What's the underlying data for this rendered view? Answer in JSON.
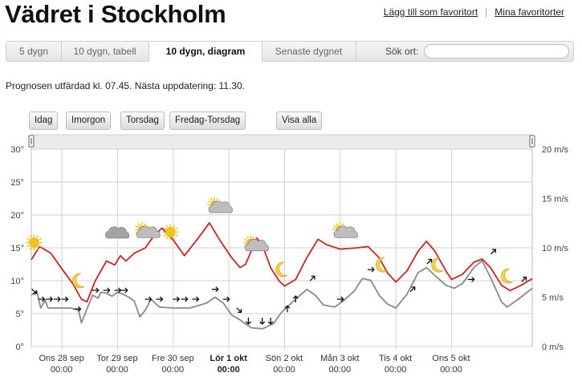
{
  "page": {
    "title": "Vädret i Stockholm",
    "links": {
      "add_favorite": "Lägg till som favoritort",
      "separator": "|",
      "my_favorites": "Mina favoritorter"
    }
  },
  "tabs": [
    {
      "label": "5 dygn",
      "active": false
    },
    {
      "label": "10 dygn, tabell",
      "active": false
    },
    {
      "label": "10 dygn, diagram",
      "active": true
    },
    {
      "label": "Senaste dygnet",
      "active": false
    }
  ],
  "search": {
    "label": "Sök ort:",
    "value": "",
    "placeholder": ""
  },
  "forecast_note": "Prognosen utfärdad kl. 07.45. Nästa uppdatering: 11.30.",
  "quick_buttons": [
    "Idag",
    "Imorgon",
    "Torsdag",
    "Fredag-Torsdag",
    "Visa alla"
  ],
  "colors": {
    "temperature": "#cc2222",
    "wind": "#8a8a8a",
    "grid": "#d2d2d2",
    "icon_sun": "#f2c318",
    "icon_cloud": "#9a9a9a"
  },
  "chart_data": {
    "type": "line",
    "y_left": {
      "unit": "°",
      "range": [
        0,
        30
      ],
      "ticks": [
        "0°",
        "5°",
        "10°",
        "15°",
        "20°",
        "25°",
        "30°"
      ]
    },
    "y_right": {
      "unit": "m/s",
      "range": [
        0,
        20
      ],
      "ticks": [
        "0 m/s",
        "5 m/s",
        "10 m/s",
        "15 m/s",
        "20 m/s"
      ]
    },
    "x_labels": [
      {
        "day": "Ons 28 sep",
        "time": "00:00",
        "bold": false
      },
      {
        "day": "Tor 29 sep",
        "time": "00:00",
        "bold": false
      },
      {
        "day": "Fre 30 sep",
        "time": "00:00",
        "bold": false
      },
      {
        "day": "Lör 1 okt",
        "time": "00:00",
        "bold": true
      },
      {
        "day": "Sön 2 okt",
        "time": "00:00",
        "bold": false
      },
      {
        "day": "Mån 3 okt",
        "time": "00:00",
        "bold": false
      },
      {
        "day": "Tis 4 okt",
        "time": "00:00",
        "bold": false
      },
      {
        "day": "Ons 5 okt",
        "time": "00:00",
        "bold": false
      }
    ],
    "x_range_days": [
      -0.55,
      8.45
    ],
    "grid": true,
    "temperature": {
      "name": "",
      "points": [
        [
          -0.55,
          13.2
        ],
        [
          -0.4,
          15.2
        ],
        [
          -0.2,
          14.2
        ],
        [
          0.0,
          11.8
        ],
        [
          0.2,
          9.5
        ],
        [
          0.35,
          7.2
        ],
        [
          0.45,
          6.8
        ],
        [
          0.6,
          10.0
        ],
        [
          0.8,
          13.0
        ],
        [
          0.95,
          12.4
        ],
        [
          1.05,
          13.8
        ],
        [
          1.15,
          13.0
        ],
        [
          1.3,
          14.2
        ],
        [
          1.5,
          15.0
        ],
        [
          1.65,
          16.8
        ],
        [
          1.8,
          18.0
        ],
        [
          2.0,
          16.2
        ],
        [
          2.2,
          13.8
        ],
        [
          2.45,
          16.5
        ],
        [
          2.65,
          18.8
        ],
        [
          2.85,
          16.0
        ],
        [
          3.05,
          13.5
        ],
        [
          3.2,
          12.0
        ],
        [
          3.3,
          12.5
        ],
        [
          3.5,
          16.5
        ],
        [
          3.6,
          15.5
        ],
        [
          3.75,
          12.0
        ],
        [
          3.9,
          10.0
        ],
        [
          4.0,
          9.2
        ],
        [
          4.2,
          10.2
        ],
        [
          4.4,
          13.5
        ],
        [
          4.6,
          16.3
        ],
        [
          4.75,
          15.5
        ],
        [
          5.0,
          14.8
        ],
        [
          5.3,
          15.0
        ],
        [
          5.5,
          15.2
        ],
        [
          5.7,
          13.5
        ],
        [
          5.85,
          11.2
        ],
        [
          6.0,
          9.8
        ],
        [
          6.2,
          11.5
        ],
        [
          6.4,
          14.5
        ],
        [
          6.55,
          16.0
        ],
        [
          6.7,
          14.5
        ],
        [
          6.9,
          11.5
        ],
        [
          7.0,
          10.2
        ],
        [
          7.2,
          11.0
        ],
        [
          7.4,
          12.8
        ],
        [
          7.55,
          13.3
        ],
        [
          7.7,
          12.0
        ],
        [
          7.9,
          9.3
        ],
        [
          8.05,
          8.5
        ],
        [
          8.25,
          9.3
        ],
        [
          8.45,
          10.3
        ]
      ]
    },
    "wind": {
      "name": "",
      "points": [
        [
          -0.55,
          5.2
        ],
        [
          -0.45,
          5.6
        ],
        [
          -0.38,
          3.9
        ],
        [
          -0.3,
          4.7
        ],
        [
          -0.25,
          3.9
        ],
        [
          -0.15,
          3.9
        ],
        [
          0.0,
          3.9
        ],
        [
          0.15,
          3.9
        ],
        [
          0.3,
          3.7
        ],
        [
          0.35,
          2.4
        ],
        [
          0.45,
          3.8
        ],
        [
          0.55,
          5.2
        ],
        [
          0.65,
          4.9
        ],
        [
          0.7,
          5.5
        ],
        [
          0.8,
          5.4
        ],
        [
          0.9,
          5.1
        ],
        [
          1.0,
          5.5
        ],
        [
          1.1,
          5.3
        ],
        [
          1.2,
          5.0
        ],
        [
          1.3,
          4.6
        ],
        [
          1.4,
          3.0
        ],
        [
          1.5,
          3.7
        ],
        [
          1.6,
          4.8
        ],
        [
          1.75,
          4.0
        ],
        [
          2.0,
          3.9
        ],
        [
          2.3,
          3.9
        ],
        [
          2.6,
          4.4
        ],
        [
          2.75,
          5.0
        ],
        [
          2.9,
          4.4
        ],
        [
          3.05,
          3.2
        ],
        [
          3.2,
          2.7
        ],
        [
          3.4,
          1.9
        ],
        [
          3.6,
          1.8
        ],
        [
          3.8,
          2.3
        ],
        [
          3.95,
          3.5
        ],
        [
          4.2,
          4.8
        ],
        [
          4.4,
          5.8
        ],
        [
          4.55,
          5.2
        ],
        [
          4.7,
          4.2
        ],
        [
          4.9,
          4.0
        ],
        [
          5.05,
          4.6
        ],
        [
          5.25,
          5.6
        ],
        [
          5.4,
          6.9
        ],
        [
          5.55,
          6.7
        ],
        [
          5.7,
          5.2
        ],
        [
          5.85,
          4.3
        ],
        [
          6.0,
          3.9
        ],
        [
          6.2,
          5.3
        ],
        [
          6.4,
          7.5
        ],
        [
          6.55,
          8.0
        ],
        [
          6.7,
          7.2
        ],
        [
          6.9,
          6.2
        ],
        [
          7.05,
          5.9
        ],
        [
          7.2,
          6.4
        ],
        [
          7.4,
          8.0
        ],
        [
          7.55,
          8.7
        ],
        [
          7.7,
          7.0
        ],
        [
          7.9,
          4.5
        ],
        [
          8.0,
          4.0
        ],
        [
          8.2,
          4.8
        ],
        [
          8.45,
          5.9
        ]
      ]
    },
    "wind_arrows": [
      {
        "x": -0.5,
        "y": 5.6,
        "dir": "se"
      },
      {
        "x": -0.37,
        "y": 4.8,
        "dir": "e"
      },
      {
        "x": -0.23,
        "y": 4.8,
        "dir": "e"
      },
      {
        "x": -0.09,
        "y": 4.8,
        "dir": "e"
      },
      {
        "x": 0.05,
        "y": 4.8,
        "dir": "e"
      },
      {
        "x": 0.28,
        "y": 3.8,
        "dir": "e"
      },
      {
        "x": 0.6,
        "y": 5.7,
        "dir": "e"
      },
      {
        "x": 0.8,
        "y": 5.7,
        "dir": "e"
      },
      {
        "x": 1.0,
        "y": 5.7,
        "dir": "e"
      },
      {
        "x": 1.12,
        "y": 5.7,
        "dir": "e"
      },
      {
        "x": 1.55,
        "y": 4.8,
        "dir": "e"
      },
      {
        "x": 1.75,
        "y": 4.8,
        "dir": "e"
      },
      {
        "x": 2.05,
        "y": 4.8,
        "dir": "e"
      },
      {
        "x": 2.2,
        "y": 4.8,
        "dir": "e"
      },
      {
        "x": 2.4,
        "y": 4.8,
        "dir": "e"
      },
      {
        "x": 2.75,
        "y": 5.8,
        "dir": "e"
      },
      {
        "x": 2.95,
        "y": 4.8,
        "dir": "e"
      },
      {
        "x": 3.18,
        "y": 3.7,
        "dir": "se"
      },
      {
        "x": 3.35,
        "y": 2.6,
        "dir": "s"
      },
      {
        "x": 3.6,
        "y": 2.6,
        "dir": "s"
      },
      {
        "x": 3.75,
        "y": 2.6,
        "dir": "s"
      },
      {
        "x": 4.05,
        "y": 3.8,
        "dir": "n"
      },
      {
        "x": 4.2,
        "y": 4.8,
        "dir": "n"
      },
      {
        "x": 4.5,
        "y": 6.9,
        "dir": "ne"
      },
      {
        "x": 5.0,
        "y": 4.8,
        "dir": "e"
      },
      {
        "x": 5.55,
        "y": 7.8,
        "dir": "e"
      },
      {
        "x": 6.3,
        "y": 5.8,
        "dir": "ne"
      },
      {
        "x": 6.6,
        "y": 8.6,
        "dir": "ne"
      },
      {
        "x": 7.35,
        "y": 6.8,
        "dir": "e"
      },
      {
        "x": 7.75,
        "y": 9.6,
        "dir": "ne"
      },
      {
        "x": 8.3,
        "y": 6.8,
        "dir": "ne"
      }
    ],
    "weather_icons": [
      {
        "x": -0.5,
        "y": 15.8,
        "icon": "sun"
      },
      {
        "x": 0.3,
        "y": 10.0,
        "icon": "moon"
      },
      {
        "x": 1.0,
        "y": 17.2,
        "icon": "cloud"
      },
      {
        "x": 1.5,
        "y": 17.4,
        "icon": "sun-cloud"
      },
      {
        "x": 1.95,
        "y": 17.4,
        "icon": "sun"
      },
      {
        "x": 2.8,
        "y": 21.2,
        "icon": "sun-cloud"
      },
      {
        "x": 3.45,
        "y": 15.4,
        "icon": "sun-cloud"
      },
      {
        "x": 3.95,
        "y": 11.7,
        "icon": "moon"
      },
      {
        "x": 5.05,
        "y": 17.4,
        "icon": "sun-cloud"
      },
      {
        "x": 5.75,
        "y": 12.4,
        "icon": "moon"
      },
      {
        "x": 6.75,
        "y": 12.4,
        "icon": "moon"
      },
      {
        "x": 8.0,
        "y": 10.7,
        "icon": "moon"
      }
    ]
  }
}
